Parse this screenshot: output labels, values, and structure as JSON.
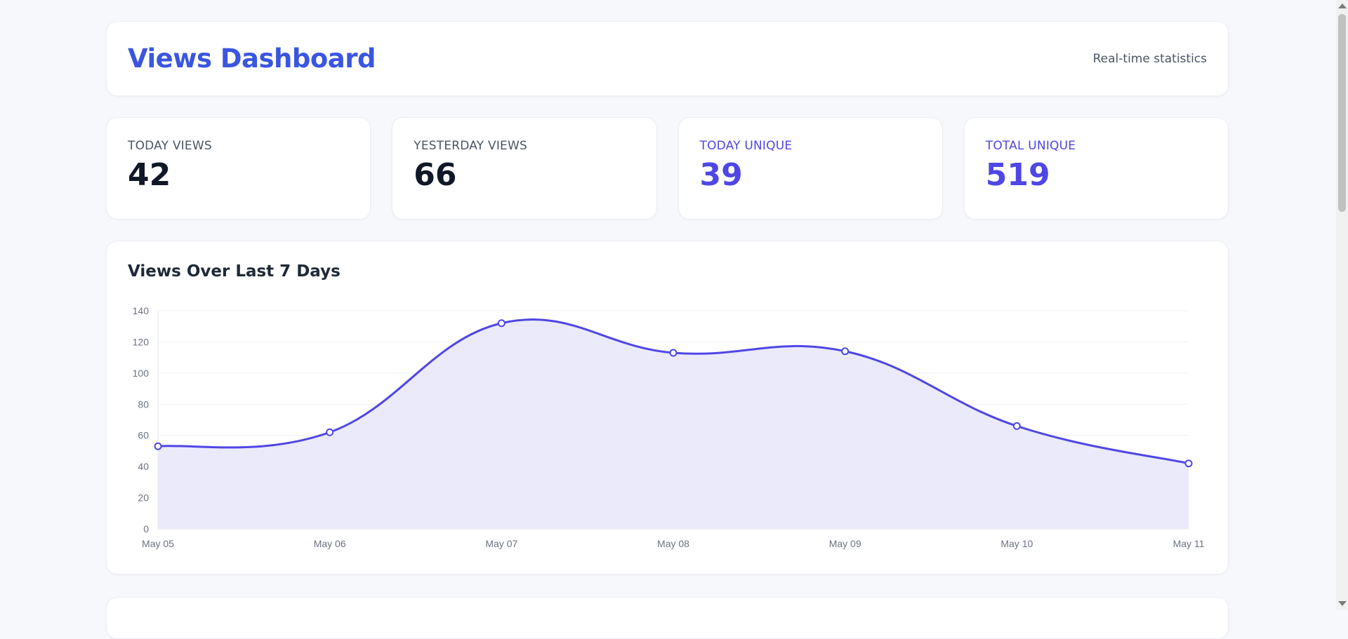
{
  "header": {
    "title": "Views Dashboard",
    "subtitle": "Real-time statistics"
  },
  "stats": [
    {
      "label": "TODAY VIEWS",
      "value": "42"
    },
    {
      "label": "YESTERDAY VIEWS",
      "value": "66"
    },
    {
      "label": "TODAY UNIQUE",
      "value": "39"
    },
    {
      "label": "TOTAL UNIQUE",
      "value": "519"
    }
  ],
  "colors": {
    "title": "#3a56e0",
    "accent": "#4f46e5",
    "line": "#4f46e5",
    "area": "#ebeafb"
  },
  "chart_data": {
    "type": "area",
    "title": "Views Over Last 7 Days",
    "categories": [
      "May 05",
      "May 06",
      "May 07",
      "May 08",
      "May 09",
      "May 10",
      "May 11"
    ],
    "series": [
      {
        "values": [
          53,
          62,
          132,
          113,
          114,
          66,
          42
        ]
      }
    ],
    "ylim": [
      0,
      140
    ],
    "yticks": [
      0,
      20,
      40,
      60,
      80,
      100,
      120,
      140
    ],
    "grid": true,
    "legend": "none"
  }
}
